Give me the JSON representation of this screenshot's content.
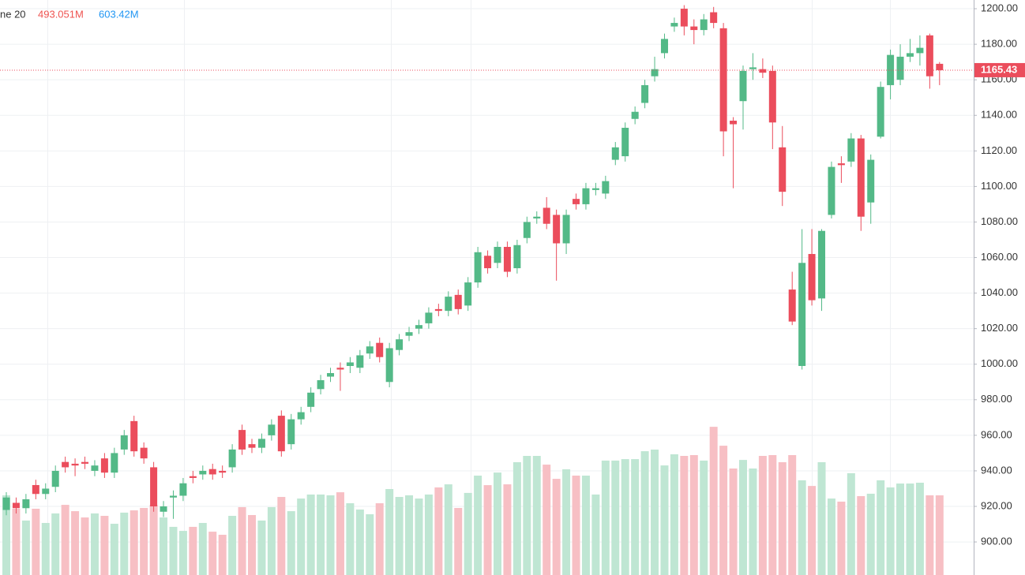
{
  "chart_data": {
    "type": "candlestick",
    "legend": {
      "label": "ne 20",
      "value": "493.051M",
      "average": "603.42M"
    },
    "last_price": 1165.43,
    "ylim": [
      881.4,
      1204.9
    ],
    "yticks": [
      {
        "value": 900,
        "label": "900.00"
      },
      {
        "value": 920,
        "label": "920.00"
      },
      {
        "value": 940,
        "label": "940.00"
      },
      {
        "value": 960,
        "label": "960.00"
      },
      {
        "value": 980,
        "label": "980.00"
      },
      {
        "value": 1000,
        "label": "1000.00"
      },
      {
        "value": 1020,
        "label": "1020.00"
      },
      {
        "value": 1040,
        "label": "1040.00"
      },
      {
        "value": 1060,
        "label": "1060.00"
      },
      {
        "value": 1080,
        "label": "1080.00"
      },
      {
        "value": 1100,
        "label": "1100.00"
      },
      {
        "value": 1120,
        "label": "1120.00"
      },
      {
        "value": 1140,
        "label": "1140.00"
      },
      {
        "value": 1160,
        "label": "1160.00"
      },
      {
        "value": 1180,
        "label": "1180.00"
      },
      {
        "value": 1200,
        "label": "1200.00"
      }
    ],
    "volume_lim": [
      0,
      3558
    ],
    "grid": true,
    "up_color": "#53b987",
    "down_color": "#eb4d5c",
    "up_volume_color": "#bfe6d3",
    "down_volume_color": "#f7bfc4",
    "open": [
      918,
      922,
      919,
      932,
      927,
      931,
      945,
      944,
      945,
      940,
      947,
      939,
      952,
      968,
      953,
      942,
      917,
      925,
      926,
      937,
      938,
      941,
      940,
      942,
      963,
      955,
      953,
      960,
      971,
      955,
      969,
      976,
      986,
      993,
      998,
      999,
      998,
      1006,
      1012,
      990,
      1008,
      1016,
      1020,
      1023,
      1031,
      1030,
      1039,
      1033,
      1046,
      1061,
      1057,
      1066,
      1054,
      1071,
      1082,
      1088,
      1084,
      1068,
      1093,
      1090,
      1098,
      1096,
      1115,
      1117,
      1138,
      1147,
      1162,
      1175,
      1190,
      1200,
      1190,
      1188,
      1198,
      1189,
      1137,
      1148,
      1166,
      1166,
      1165,
      1122,
      1042,
      999,
      1062,
      1037,
      1084,
      1113,
      1114,
      1127,
      1091,
      1128,
      1157,
      1160,
      1173,
      1175,
      1185,
      1169
    ],
    "high": [
      928,
      925,
      927,
      935,
      933,
      943,
      948,
      947,
      948,
      946,
      950,
      953,
      963,
      971,
      956,
      945,
      923,
      929,
      936,
      940,
      943,
      944,
      943,
      955,
      966,
      958,
      961,
      969,
      974,
      972,
      976,
      987,
      994,
      998,
      1001,
      1004,
      1008,
      1013,
      1015,
      1012,
      1017,
      1021,
      1025,
      1032,
      1034,
      1041,
      1042,
      1049,
      1066,
      1064,
      1069,
      1069,
      1070,
      1083,
      1086,
      1094,
      1087,
      1087,
      1096,
      1102,
      1102,
      1106,
      1125,
      1136,
      1145,
      1160,
      1173,
      1186,
      1195,
      1202,
      1194,
      1197,
      1201,
      1192,
      1139,
      1168,
      1175,
      1172,
      1168,
      1134,
      1052,
      1076,
      1076,
      1076,
      1114,
      1117,
      1130,
      1129,
      1118,
      1159,
      1177,
      1180,
      1183,
      1185,
      1186,
      1170
    ],
    "low": [
      915,
      916,
      916,
      924,
      924,
      928,
      939,
      937,
      941,
      937,
      936,
      936,
      949,
      948,
      944,
      917,
      914,
      913,
      923,
      933,
      935,
      935,
      936,
      939,
      949,
      950,
      950,
      957,
      948,
      952,
      966,
      973,
      983,
      990,
      985,
      995,
      995,
      1003,
      1001,
      987,
      1005,
      1013,
      1017,
      1020,
      1027,
      1027,
      1028,
      1030,
      1043,
      1051,
      1054,
      1049,
      1051,
      1068,
      1079,
      1076,
      1047,
      1062,
      1087,
      1087,
      1095,
      1093,
      1112,
      1114,
      1135,
      1144,
      1159,
      1172,
      1187,
      1185,
      1180,
      1185,
      1189,
      1117,
      1099,
      1132,
      1160,
      1161,
      1121,
      1089,
      1022,
      997,
      1033,
      1030,
      1082,
      1102,
      1111,
      1075,
      1079,
      1127,
      1149,
      1157,
      1170,
      1168,
      1155,
      1157
    ],
    "close": [
      925,
      919,
      924,
      927,
      930,
      940,
      942,
      943,
      944,
      943,
      939,
      950,
      960,
      951,
      947,
      920,
      920,
      926,
      933,
      936,
      940,
      938,
      939,
      952,
      952,
      953,
      958,
      966,
      951,
      969,
      973,
      984,
      991,
      995,
      997,
      1001,
      1005,
      1010,
      1004,
      1009,
      1014,
      1018,
      1022,
      1029,
      1030,
      1038,
      1031,
      1046,
      1063,
      1054,
      1066,
      1052,
      1067,
      1080,
      1083,
      1079,
      1068,
      1084,
      1090,
      1099,
      1099,
      1103,
      1122,
      1133,
      1142,
      1157,
      1166,
      1183,
      1192,
      1190,
      1188,
      1194,
      1192,
      1131,
      1135,
      1165,
      1167,
      1164,
      1136,
      1097,
      1024,
      1057,
      1036,
      1075,
      1111,
      1112,
      1127,
      1083,
      1115,
      1156,
      1174,
      1173,
      1175,
      1178,
      1162,
      1165.43
    ],
    "volume": [
      493,
      410,
      337,
      410,
      322,
      381,
      434,
      395,
      356,
      381,
      366,
      317,
      386,
      400,
      415,
      434,
      356,
      298,
      273,
      298,
      322,
      268,
      249,
      366,
      420,
      371,
      337,
      420,
      483,
      395,
      473,
      498,
      498,
      493,
      512,
      444,
      405,
      376,
      444,
      532,
      483,
      493,
      473,
      498,
      542,
      561,
      415,
      508,
      615,
      556,
      634,
      561,
      698,
      737,
      737,
      683,
      595,
      654,
      615,
      615,
      498,
      708,
      708,
      717,
      717,
      766,
      776,
      678,
      747,
      737,
      742,
      708,
      917,
      800,
      659,
      712,
      659,
      737,
      742,
      698,
      742,
      586,
      551,
      698,
      473,
      454,
      630,
      488,
      503,
      586,
      542,
      566,
      566,
      571,
      493,
      493.051
    ]
  }
}
